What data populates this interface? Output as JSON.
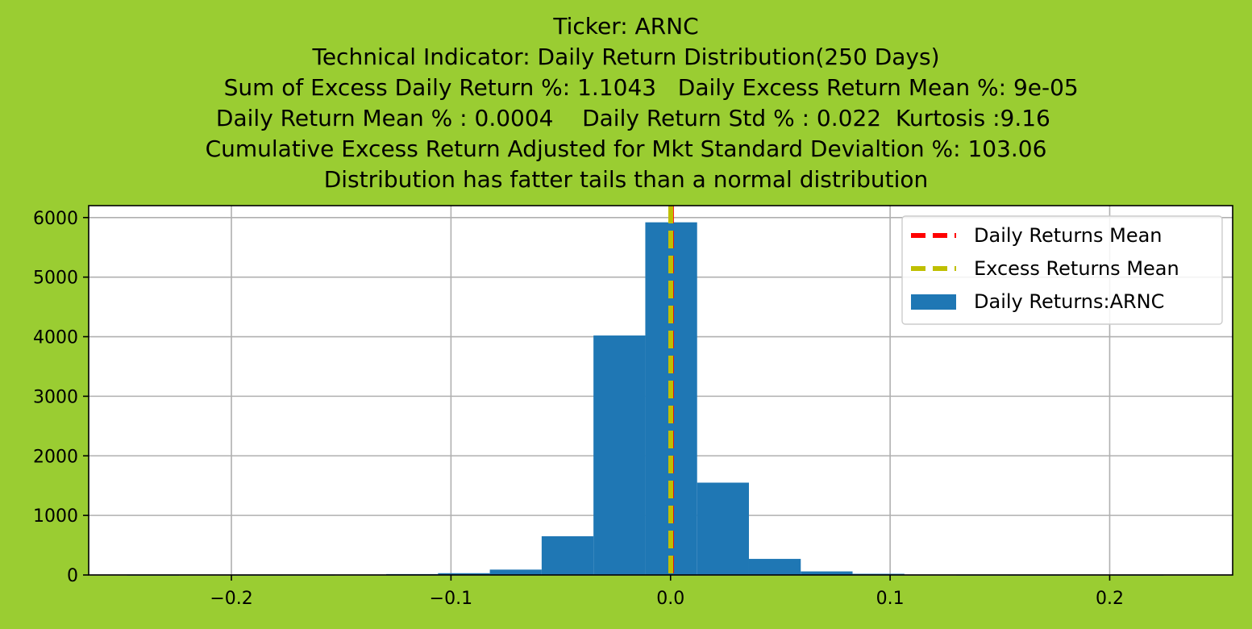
{
  "colors": {
    "figure_background": "#9acd32",
    "axes_background": "#ffffff",
    "bar": "#1f77b4",
    "daily_mean_line": "#ff0000",
    "excess_mean_line": "#bfbf00",
    "grid": "#b0b0b0"
  },
  "chart_data": {
    "type": "bar",
    "subtype": "histogram",
    "title_lines": [
      "Ticker: ARNC",
      "Technical Indicator: Daily Return Distribution(250 Days)",
      "       Sum of Excess Daily Return %: 1.1043   Daily Excess Return Mean %: 9e-05",
      "  Daily Return Mean % : 0.0004    Daily Return Std % : 0.022  Kurtosis :9.16",
      "Cumulative Excess Return Adjusted for Mkt Standard Devialtion %: 103.06",
      "Distribution has fatter tails than a normal distribution"
    ],
    "xlabel": "",
    "ylabel": "",
    "xlim": [
      -0.265,
      0.256
    ],
    "ylim": [
      0,
      6200
    ],
    "x_ticks": [
      -0.2,
      -0.1,
      0.0,
      0.1,
      0.2
    ],
    "x_tick_labels": [
      "−0.2",
      "−0.1",
      "0.0",
      "0.1",
      "0.2"
    ],
    "y_ticks": [
      0,
      1000,
      2000,
      3000,
      4000,
      5000,
      6000
    ],
    "y_tick_labels": [
      "0",
      "1000",
      "2000",
      "3000",
      "4000",
      "5000",
      "6000"
    ],
    "grid": true,
    "legend_position": "top-right",
    "bins": [
      {
        "x0": -0.2475,
        "x1": -0.2239,
        "count": 1
      },
      {
        "x0": -0.2239,
        "x1": -0.2003,
        "count": 0
      },
      {
        "x0": -0.2003,
        "x1": -0.1767,
        "count": 1
      },
      {
        "x0": -0.1767,
        "x1": -0.1531,
        "count": 2
      },
      {
        "x0": -0.1531,
        "x1": -0.1295,
        "count": 4
      },
      {
        "x0": -0.1295,
        "x1": -0.1059,
        "count": 15
      },
      {
        "x0": -0.1059,
        "x1": -0.0823,
        "count": 30
      },
      {
        "x0": -0.0823,
        "x1": -0.0587,
        "count": 90
      },
      {
        "x0": -0.0587,
        "x1": -0.0351,
        "count": 650
      },
      {
        "x0": -0.0351,
        "x1": -0.0115,
        "count": 4020
      },
      {
        "x0": -0.0115,
        "x1": 0.0121,
        "count": 5920
      },
      {
        "x0": 0.0121,
        "x1": 0.0357,
        "count": 1550
      },
      {
        "x0": 0.0357,
        "x1": 0.0593,
        "count": 270
      },
      {
        "x0": 0.0593,
        "x1": 0.0829,
        "count": 60
      },
      {
        "x0": 0.0829,
        "x1": 0.1065,
        "count": 20
      },
      {
        "x0": 0.1065,
        "x1": 0.1301,
        "count": 5
      },
      {
        "x0": 0.1301,
        "x1": 0.1537,
        "count": 2
      },
      {
        "x0": 0.1537,
        "x1": 0.1773,
        "count": 1
      },
      {
        "x0": 0.1773,
        "x1": 0.2009,
        "count": 0
      },
      {
        "x0": 0.2009,
        "x1": 0.2245,
        "count": 1
      }
    ],
    "vlines": [
      {
        "name": "Daily Returns Mean",
        "x": 0.0004,
        "color": "#ff0000"
      },
      {
        "name": "Excess Returns Mean",
        "x": 9e-05,
        "color": "#bfbf00"
      }
    ],
    "legend": [
      {
        "label": "Daily Returns Mean",
        "kind": "dashed-line",
        "color": "#ff0000"
      },
      {
        "label": "Excess Returns Mean",
        "kind": "dashed-line",
        "color": "#bfbf00"
      },
      {
        "label": "Daily Returns:ARNC",
        "kind": "patch",
        "color": "#1f77b4"
      }
    ]
  }
}
